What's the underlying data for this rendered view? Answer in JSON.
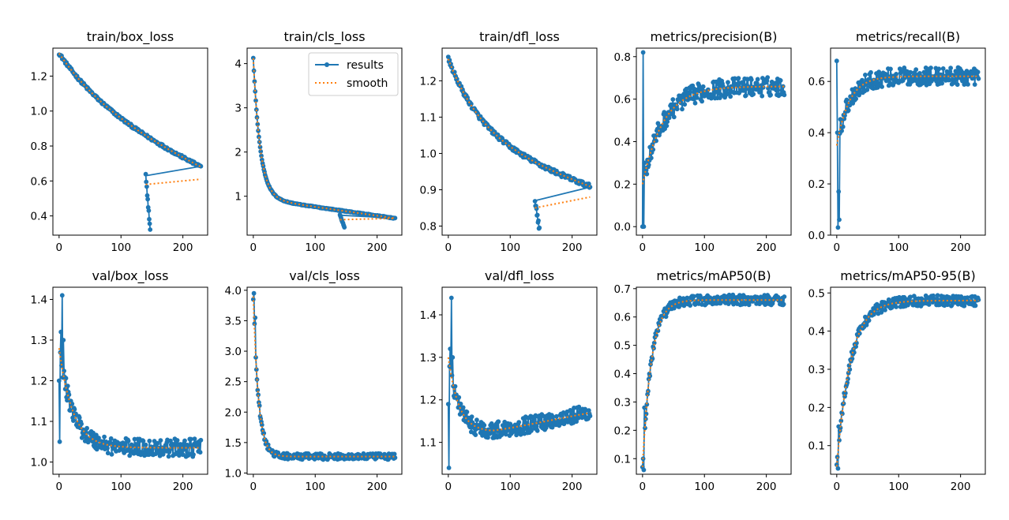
{
  "colors": {
    "results": "#1f77b4",
    "smooth": "#ff7f0e",
    "axis": "#000000",
    "background": "#ffffff"
  },
  "legend": {
    "results_label": "results",
    "smooth_label": "smooth",
    "placement": "upper-right of train/cls_loss"
  },
  "chart_data": [
    {
      "type": "line",
      "title": "train/box_loss",
      "xlim": [
        -10,
        240
      ],
      "ylim": [
        0.29,
        1.36
      ],
      "xticks": [
        0,
        100,
        200
      ],
      "yticks": [
        0.4,
        0.6,
        0.8,
        1.0,
        1.2
      ],
      "ytick_labels": [
        "0.4",
        "0.6",
        "0.8",
        "1.0",
        "1.2"
      ],
      "shape": {
        "model": "loss",
        "start": 1.33,
        "end": 0.66,
        "k": 0.012,
        "lin": 0.0016,
        "noise": 0.008,
        "drop": {
          "at": 140,
          "to_start": 0.63,
          "to_end": 0.32,
          "len": 10,
          "smooth_start": 0.58,
          "smooth_end": 0.61
        }
      }
    },
    {
      "type": "line",
      "title": "train/cls_loss",
      "xlim": [
        -10,
        240
      ],
      "ylim": [
        0.12,
        4.35
      ],
      "xticks": [
        0,
        100,
        200
      ],
      "yticks": [
        1,
        2,
        3,
        4
      ],
      "ytick_labels": [
        "1",
        "2",
        "3",
        "4"
      ],
      "legend": true,
      "shape": {
        "model": "cls",
        "start": 4.12,
        "end": 0.5,
        "k": 0.09,
        "lin": 0.002,
        "noise": 0.01,
        "drop": {
          "at": 140,
          "to_start": 0.57,
          "to_end": 0.3,
          "len": 10,
          "smooth_start": 0.47,
          "smooth_end": 0.5
        }
      }
    },
    {
      "type": "line",
      "title": "train/dfl_loss",
      "xlim": [
        -10,
        240
      ],
      "ylim": [
        0.775,
        1.29
      ],
      "xticks": [
        0,
        100,
        200
      ],
      "yticks": [
        0.8,
        0.9,
        1.0,
        1.1,
        1.2
      ],
      "ytick_labels": [
        "0.8",
        "0.9",
        "1.0",
        "1.1",
        "1.2"
      ],
      "shape": {
        "model": "loss",
        "start": 1.26,
        "end": 0.905,
        "k": 0.018,
        "lin": 0.0006,
        "noise": 0.006,
        "drop": {
          "at": 140,
          "to_start": 0.87,
          "to_end": 0.795,
          "len": 10,
          "smooth_start": 0.85,
          "smooth_end": 0.88
        }
      }
    },
    {
      "type": "line",
      "title": "metrics/precision(B)",
      "xlim": [
        -10,
        240
      ],
      "ylim": [
        -0.04,
        0.84
      ],
      "xticks": [
        0,
        100,
        200
      ],
      "yticks": [
        0.0,
        0.2,
        0.4,
        0.6,
        0.8
      ],
      "ytick_labels": [
        "0.0",
        "0.2",
        "0.4",
        "0.6",
        "0.8"
      ],
      "shape": {
        "model": "metric",
        "start": 0.2,
        "end": 0.66,
        "k": 0.03,
        "noise": 0.045,
        "spikes": [
          [
            0,
            0.0
          ],
          [
            1,
            0.82
          ],
          [
            2,
            0.0
          ],
          [
            3,
            0.3
          ]
        ]
      }
    },
    {
      "type": "line",
      "title": "metrics/recall(B)",
      "xlim": [
        -10,
        240
      ],
      "ylim": [
        0.0,
        0.73
      ],
      "xticks": [
        0,
        100,
        200
      ],
      "yticks": [
        0.0,
        0.2,
        0.4,
        0.6
      ],
      "ytick_labels": [
        "0.0",
        "0.2",
        "0.4",
        "0.6"
      ],
      "shape": {
        "model": "metric",
        "start": 0.35,
        "end": 0.62,
        "k": 0.05,
        "noise": 0.035,
        "spikes": [
          [
            0,
            0.68
          ],
          [
            1,
            0.4
          ],
          [
            2,
            0.03
          ],
          [
            3,
            0.17
          ],
          [
            4,
            0.06
          ]
        ]
      }
    },
    {
      "type": "line",
      "title": "val/box_loss",
      "xlim": [
        -10,
        240
      ],
      "ylim": [
        0.97,
        1.43
      ],
      "xticks": [
        0,
        100,
        200
      ],
      "yticks": [
        1.0,
        1.1,
        1.2,
        1.3,
        1.4
      ],
      "ytick_labels": [
        "1.0",
        "1.1",
        "1.2",
        "1.3",
        "1.4"
      ],
      "shape": {
        "model": "valloss",
        "start": 1.28,
        "end": 1.035,
        "k": 0.045,
        "noise": 0.022,
        "spikes": [
          [
            0,
            1.2
          ],
          [
            1,
            1.05
          ],
          [
            3,
            1.32
          ],
          [
            5,
            1.41
          ],
          [
            7,
            1.3
          ]
        ]
      }
    },
    {
      "type": "line",
      "title": "val/cls_loss",
      "xlim": [
        -10,
        240
      ],
      "ylim": [
        0.98,
        4.05
      ],
      "xticks": [
        0,
        100,
        200
      ],
      "yticks": [
        1.0,
        1.5,
        2.0,
        2.5,
        3.0,
        3.5,
        4.0
      ],
      "ytick_labels": [
        "1.0",
        "1.5",
        "2.0",
        "2.5",
        "3.0",
        "3.5",
        "4.0"
      ],
      "shape": {
        "model": "valcls",
        "start": 3.9,
        "end": 1.27,
        "k": 0.12,
        "noise": 0.05,
        "spikes": [
          [
            0,
            3.85
          ],
          [
            1,
            3.95
          ],
          [
            2,
            3.45
          ],
          [
            3,
            3.55
          ]
        ]
      }
    },
    {
      "type": "line",
      "title": "val/dfl_loss",
      "xlim": [
        -10,
        240
      ],
      "ylim": [
        1.025,
        1.465
      ],
      "xticks": [
        0,
        100,
        200
      ],
      "yticks": [
        1.1,
        1.2,
        1.3,
        1.4
      ],
      "ytick_labels": [
        "1.1",
        "1.2",
        "1.3",
        "1.4"
      ],
      "shape": {
        "model": "valdfl",
        "start": 1.3,
        "min": 1.125,
        "end": 1.17,
        "noise": 0.02,
        "spikes": [
          [
            0,
            1.19
          ],
          [
            1,
            1.04
          ],
          [
            3,
            1.32
          ],
          [
            5,
            1.44
          ],
          [
            7,
            1.3
          ]
        ]
      }
    },
    {
      "type": "line",
      "title": "metrics/mAP50(B)",
      "xlim": [
        -10,
        240
      ],
      "ylim": [
        0.045,
        0.705
      ],
      "xticks": [
        0,
        100,
        200
      ],
      "yticks": [
        0.1,
        0.2,
        0.3,
        0.4,
        0.5,
        0.6,
        0.7
      ],
      "ytick_labels": [
        "0.1",
        "0.2",
        "0.3",
        "0.4",
        "0.5",
        "0.6",
        "0.7"
      ],
      "shape": {
        "model": "metric",
        "start": 0.07,
        "end": 0.66,
        "k": 0.07,
        "noise": 0.018,
        "spikes": [
          [
            0,
            0.07
          ],
          [
            1,
            0.1
          ],
          [
            2,
            0.06
          ],
          [
            3,
            0.28
          ]
        ]
      }
    },
    {
      "type": "line",
      "title": "metrics/mAP50-95(B)",
      "xlim": [
        -10,
        240
      ],
      "ylim": [
        0.025,
        0.515
      ],
      "xticks": [
        0,
        100,
        200
      ],
      "yticks": [
        0.1,
        0.2,
        0.3,
        0.4,
        0.5
      ],
      "ytick_labels": [
        "0.1",
        "0.2",
        "0.3",
        "0.4",
        "0.5"
      ],
      "shape": {
        "model": "metric",
        "start": 0.045,
        "end": 0.48,
        "k": 0.045,
        "noise": 0.014,
        "spikes": [
          [
            0,
            0.05
          ],
          [
            1,
            0.07
          ],
          [
            2,
            0.04
          ],
          [
            3,
            0.15
          ]
        ]
      }
    }
  ]
}
